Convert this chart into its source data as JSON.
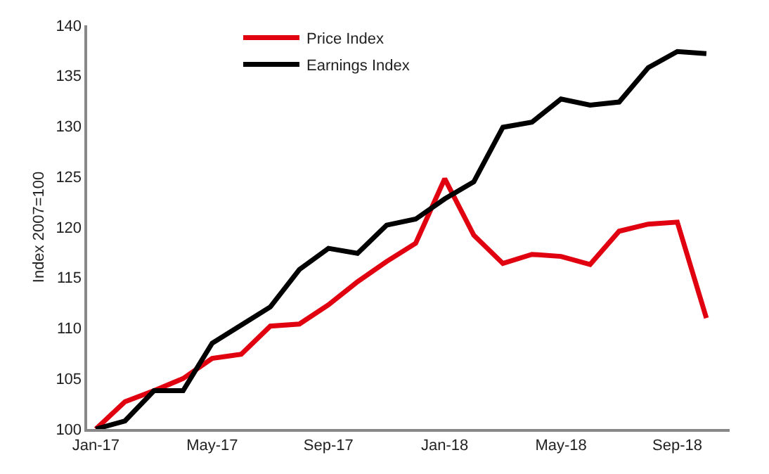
{
  "chart_data": {
    "type": "line",
    "ylabel": "Index 2007=100",
    "categories": [
      "Jan-17",
      null,
      null,
      null,
      "May-17",
      null,
      null,
      null,
      "Sep-17",
      null,
      null,
      null,
      "Jan-18",
      null,
      null,
      null,
      "May-18",
      null,
      null,
      null,
      "Sep-18",
      null
    ],
    "series": [
      {
        "name": "Price Index",
        "color": "#e0000f",
        "values": [
          100,
          102.7,
          103.8,
          105,
          107,
          107.4,
          110.2,
          110.4,
          112.3,
          114.6,
          116.6,
          118.4,
          124.8,
          119.2,
          116.4,
          117.3,
          117.1,
          116.3,
          119.6,
          120.3,
          120.5,
          111
        ]
      },
      {
        "name": "Earnings Index",
        "color": "#000000",
        "values": [
          100,
          100.8,
          103.8,
          103.8,
          108.5,
          110.3,
          112.1,
          115.8,
          117.9,
          117.4,
          120.2,
          120.8,
          122.8,
          124.5,
          129.9,
          130.4,
          132.7,
          132.1,
          132.4,
          135.8,
          137.4,
          137.2
        ]
      }
    ],
    "ylim": [
      100,
      140
    ],
    "yticks": [
      100,
      105,
      110,
      115,
      120,
      125,
      130,
      135,
      140
    ],
    "grid": false,
    "legend": "top",
    "marker": "none",
    "line_style": "solid"
  }
}
